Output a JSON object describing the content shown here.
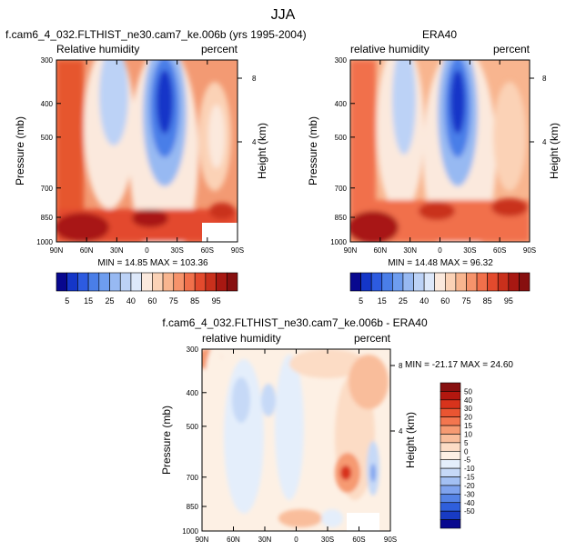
{
  "figure": {
    "title": "JJA"
  },
  "chart_data": [
    {
      "type": "heatmap",
      "id": "model",
      "title": "f.cam6_4_032.FLTHIST_ne30.cam7_ke.006b (yrs 1995-2004)",
      "left_label": "Relative humidity",
      "right_label": "percent",
      "ylabel": "Pressure (mb)",
      "ylabel_right": "Height (km)",
      "x_ticks": [
        "90N",
        "60N",
        "30N",
        "0",
        "30S",
        "60S",
        "90S"
      ],
      "y_ticks": [
        "300",
        "400",
        "500",
        "700",
        "850",
        "1000"
      ],
      "height_ticks": [
        "8",
        "4"
      ],
      "ylim": [
        1000,
        300
      ],
      "stats": "MIN = 14.85  MAX = 103.36",
      "min": 14.85,
      "max": 103.36
    },
    {
      "type": "heatmap",
      "id": "obs",
      "title": "ERA40",
      "left_label": "relative humidity",
      "right_label": "percent",
      "ylabel": "Pressure (mb)",
      "ylabel_right": "Height (km)",
      "x_ticks": [
        "90N",
        "60N",
        "30N",
        "0",
        "30S",
        "60S",
        "90S"
      ],
      "y_ticks": [
        "300",
        "400",
        "500",
        "700",
        "850",
        "1000"
      ],
      "height_ticks": [
        "8",
        "4"
      ],
      "ylim": [
        1000,
        300
      ],
      "stats": "MIN = 14.48  MAX = 96.32",
      "min": 14.48,
      "max": 96.32
    },
    {
      "type": "heatmap",
      "id": "diff",
      "title": "f.cam6_4_032.FLTHIST_ne30.cam7_ke.006b - ERA40",
      "left_label": "relative humidity",
      "right_label": "percent",
      "ylabel": "Pressure (mb)",
      "ylabel_right": "Height (km)",
      "x_ticks": [
        "90N",
        "60N",
        "30N",
        "0",
        "30S",
        "60S",
        "90S"
      ],
      "y_ticks": [
        "300",
        "400",
        "500",
        "700",
        "850",
        "1000"
      ],
      "height_ticks": [
        "8",
        "4"
      ],
      "ylim": [
        1000,
        300
      ],
      "stats": "MIN = -21.17  MAX = 24.60",
      "min": -21.17,
      "max": 24.6
    }
  ],
  "colorbar_abs": {
    "labels": [
      "5",
      "15",
      "25",
      "40",
      "60",
      "75",
      "85",
      "95"
    ],
    "colors": [
      "#08088f",
      "#1436c8",
      "#2d5be0",
      "#4a7ee8",
      "#6e9def",
      "#97b9f2",
      "#bcd2f6",
      "#dde8fa",
      "#fbe9dd",
      "#fbd2b6",
      "#f8b58f",
      "#f6936b",
      "#f1704b",
      "#e34a2d",
      "#c9301c",
      "#a81812",
      "#870f0f"
    ]
  },
  "colorbar_diff": {
    "labels": [
      "50",
      "40",
      "30",
      "20",
      "15",
      "10",
      "5",
      "0",
      "-5",
      "-10",
      "-15",
      "-20",
      "-30",
      "-40",
      "-50"
    ],
    "colors": [
      "#870f0f",
      "#b3170f",
      "#d8331c",
      "#ea5532",
      "#f3764f",
      "#f69a72",
      "#f9bd9b",
      "#fcdcc5",
      "#fdf0e4",
      "#e4eefb",
      "#c6d9f7",
      "#a3c0f3",
      "#7fa3ee",
      "#5583e6",
      "#2f5fdc",
      "#183bc4",
      "#08088f"
    ]
  }
}
